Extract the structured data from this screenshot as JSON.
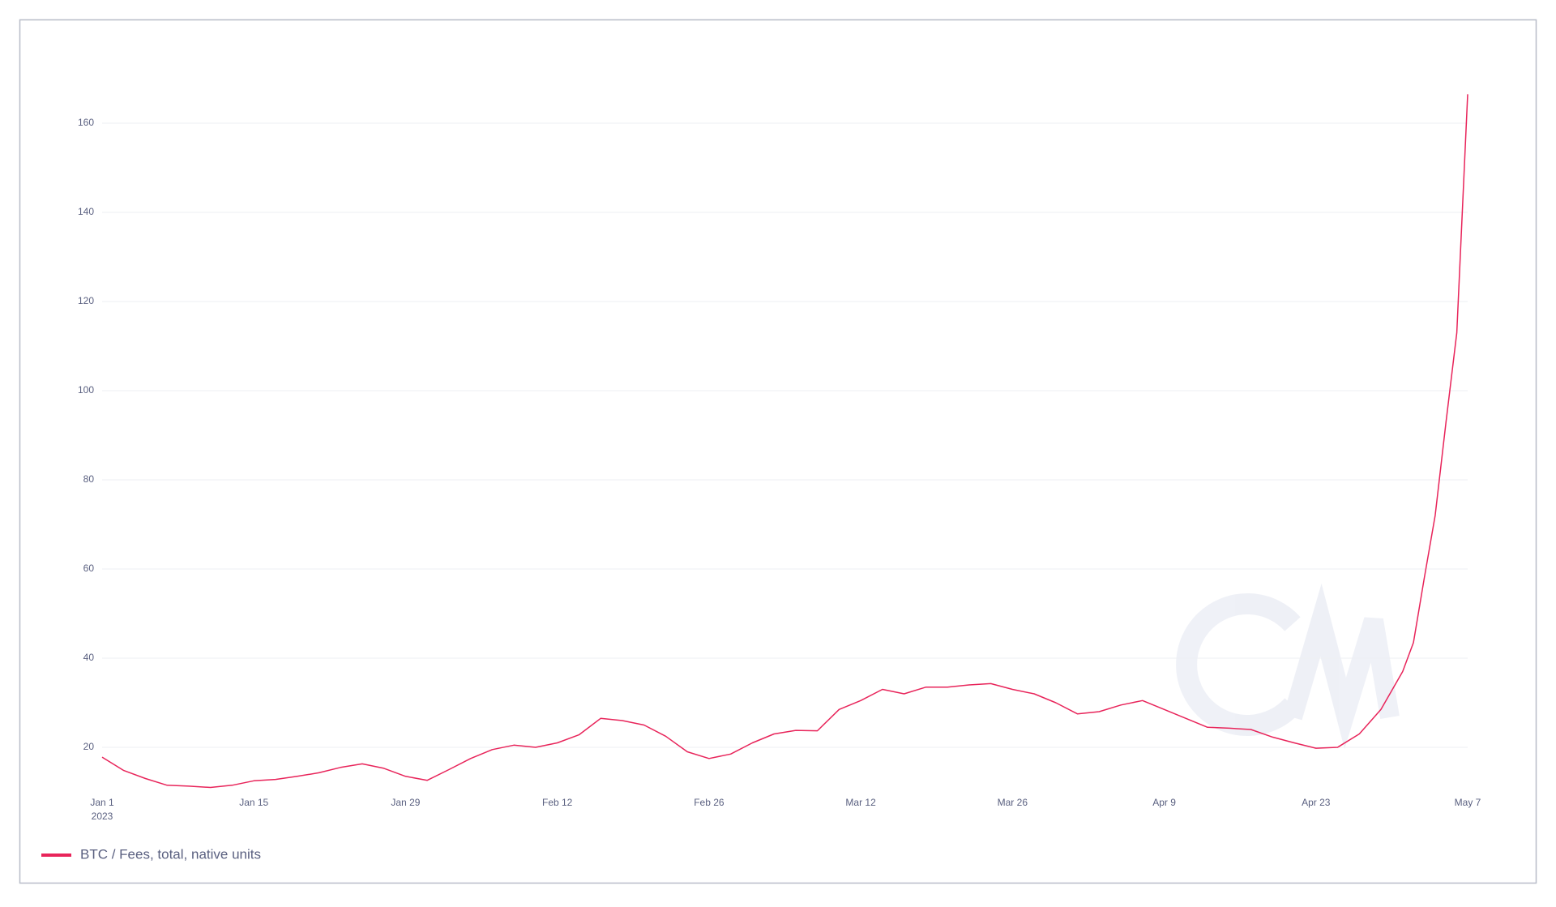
{
  "chart_data": {
    "type": "line",
    "x": [
      "2023-01-01",
      "2023-01-03",
      "2023-01-05",
      "2023-01-07",
      "2023-01-09",
      "2023-01-11",
      "2023-01-13",
      "2023-01-15",
      "2023-01-17",
      "2023-01-19",
      "2023-01-21",
      "2023-01-23",
      "2023-01-25",
      "2023-01-27",
      "2023-01-29",
      "2023-01-31",
      "2023-02-02",
      "2023-02-04",
      "2023-02-06",
      "2023-02-08",
      "2023-02-10",
      "2023-02-12",
      "2023-02-14",
      "2023-02-16",
      "2023-02-18",
      "2023-02-20",
      "2023-02-22",
      "2023-02-24",
      "2023-02-26",
      "2023-02-28",
      "2023-03-02",
      "2023-03-04",
      "2023-03-06",
      "2023-03-08",
      "2023-03-10",
      "2023-03-12",
      "2023-03-14",
      "2023-03-16",
      "2023-03-18",
      "2023-03-20",
      "2023-03-22",
      "2023-03-24",
      "2023-03-26",
      "2023-03-28",
      "2023-03-30",
      "2023-04-01",
      "2023-04-03",
      "2023-04-05",
      "2023-04-07",
      "2023-04-09",
      "2023-04-11",
      "2023-04-13",
      "2023-04-15",
      "2023-04-17",
      "2023-04-19",
      "2023-04-21",
      "2023-04-23",
      "2023-04-25",
      "2023-04-27",
      "2023-04-29",
      "2023-05-01",
      "2023-05-02",
      "2023-05-03",
      "2023-05-04",
      "2023-05-05",
      "2023-05-06",
      "2023-05-07"
    ],
    "series": [
      {
        "name": "BTC / Fees, total, native units",
        "color": "#e8245a",
        "values": [
          17.8,
          14.8,
          13.0,
          11.5,
          11.3,
          11.0,
          11.5,
          12.5,
          12.8,
          13.5,
          14.3,
          15.5,
          16.3,
          15.3,
          13.5,
          12.6,
          15.0,
          17.5,
          19.5,
          20.5,
          20.0,
          21.0,
          22.8,
          26.5,
          26.0,
          25.0,
          22.5,
          19.0,
          17.5,
          18.5,
          21.0,
          23.0,
          23.8,
          23.7,
          28.5,
          30.5,
          33.0,
          32.0,
          33.5,
          33.5,
          34.0,
          34.3,
          33.0,
          32.0,
          30.0,
          27.5,
          28.0,
          29.5,
          30.5,
          28.5,
          26.5,
          24.5,
          24.3,
          24.0,
          22.3,
          21.0,
          19.8,
          20.0,
          23.0,
          28.5,
          37.0,
          43.5,
          58.0,
          72.0,
          93.0,
          113.0,
          166.5
        ]
      }
    ],
    "xlim": [
      "2023-01-01",
      "2023-05-07"
    ],
    "xticks": [
      {
        "value": "2023-01-01",
        "label": "Jan 1"
      },
      {
        "value": "2023-01-15",
        "label": "Jan 15"
      },
      {
        "value": "2023-01-29",
        "label": "Jan 29"
      },
      {
        "value": "2023-02-12",
        "label": "Feb 12"
      },
      {
        "value": "2023-02-26",
        "label": "Feb 26"
      },
      {
        "value": "2023-03-12",
        "label": "Mar 12"
      },
      {
        "value": "2023-03-26",
        "label": "Mar 26"
      },
      {
        "value": "2023-04-09",
        "label": "Apr 9"
      },
      {
        "value": "2023-04-23",
        "label": "Apr 23"
      },
      {
        "value": "2023-05-07",
        "label": "May 7"
      }
    ],
    "x_year_label": "2023",
    "ylim": [
      10,
      170
    ],
    "yticks": [
      20,
      40,
      60,
      80,
      100,
      120,
      140,
      160
    ],
    "grid": true,
    "legend": "bottom-left"
  }
}
